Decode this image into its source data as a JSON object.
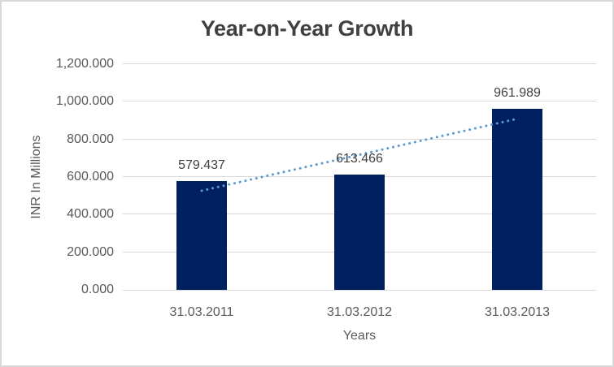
{
  "window": {
    "background": "#ffffff",
    "border_color": "#d9d9d9"
  },
  "colors": {
    "title_text": "#404040",
    "axis_text": "#595959",
    "data_label_text": "#404040",
    "gridline": "#d9d9d9",
    "bar": "#002060",
    "trendline": "#5b9bd5"
  },
  "chart_data": {
    "type": "bar",
    "title": "Year-on-Year Growth",
    "xlabel": "Years",
    "ylabel": "INR In Millions",
    "categories": [
      "31.03.2011",
      "31.03.2012",
      "31.03.2013"
    ],
    "series": [
      {
        "name": "INR In Millions",
        "values": [
          579.437,
          613.466,
          961.989
        ],
        "color": "#002060"
      }
    ],
    "data_labels": [
      "579.437",
      "613.466",
      "961.989"
    ],
    "ylim": [
      0,
      1200
    ],
    "grid": true,
    "legend": false,
    "yticks": [
      {
        "value": 0,
        "label": "0.000"
      },
      {
        "value": 200,
        "label": "200.000"
      },
      {
        "value": 400,
        "label": "400.000"
      },
      {
        "value": 600,
        "label": "600.000"
      },
      {
        "value": 800,
        "label": "800.000"
      },
      {
        "value": 1000,
        "label": "1,000.000"
      },
      {
        "value": 1200,
        "label": "1,200.000"
      }
    ],
    "trendline": {
      "type": "linear",
      "style": "dotted",
      "color": "#5b9bd5"
    }
  }
}
